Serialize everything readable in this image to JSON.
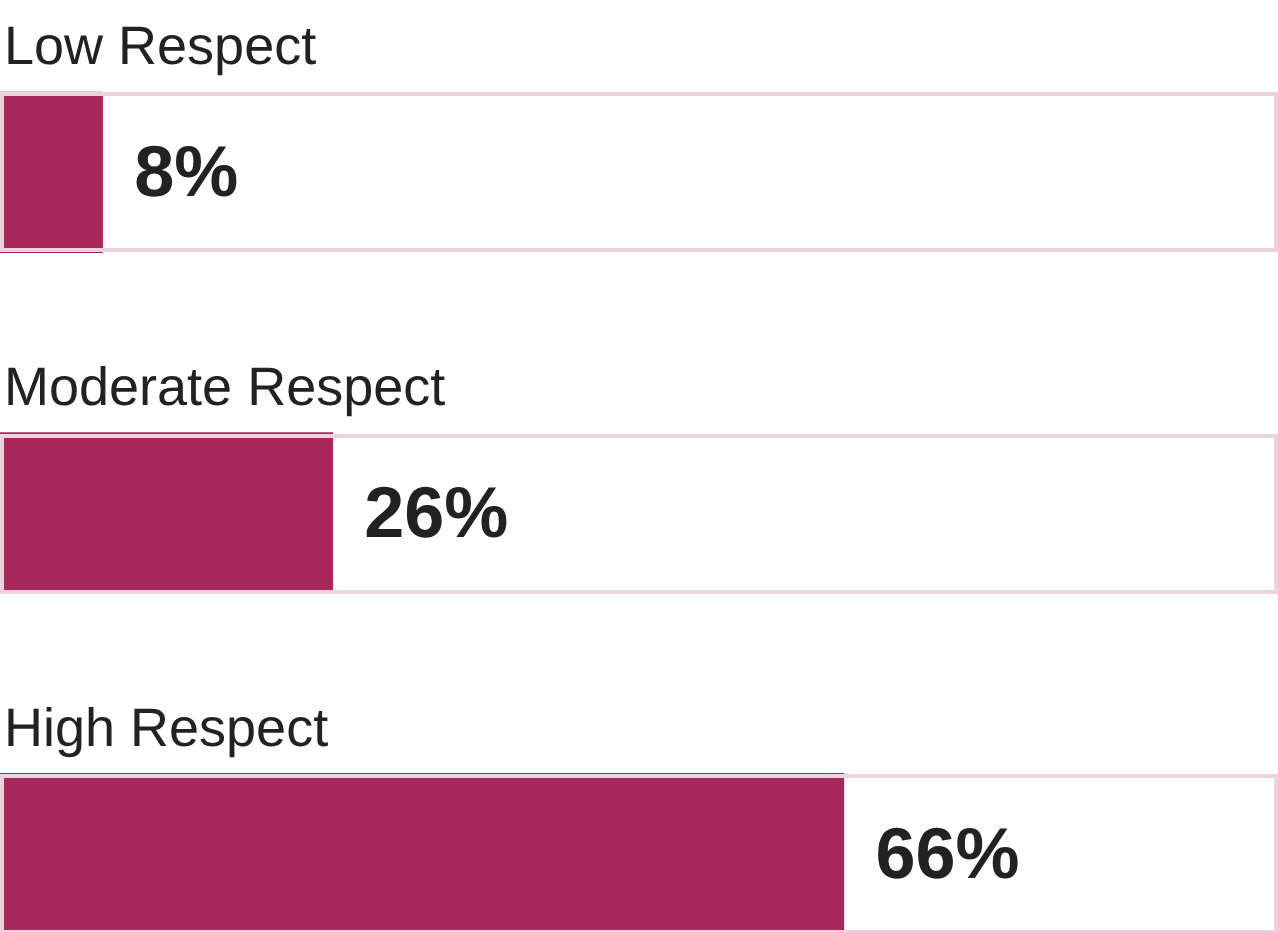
{
  "chart_data": {
    "type": "bar",
    "orientation": "horizontal",
    "categories": [
      "Low Respect",
      "Moderate Respect",
      "High Respect"
    ],
    "values": [
      8,
      26,
      66
    ],
    "value_labels": [
      "8%",
      "26%",
      "66%"
    ],
    "color": "#a8285a",
    "xlim": [
      0,
      100
    ],
    "tick_labels": false,
    "legend": false
  }
}
